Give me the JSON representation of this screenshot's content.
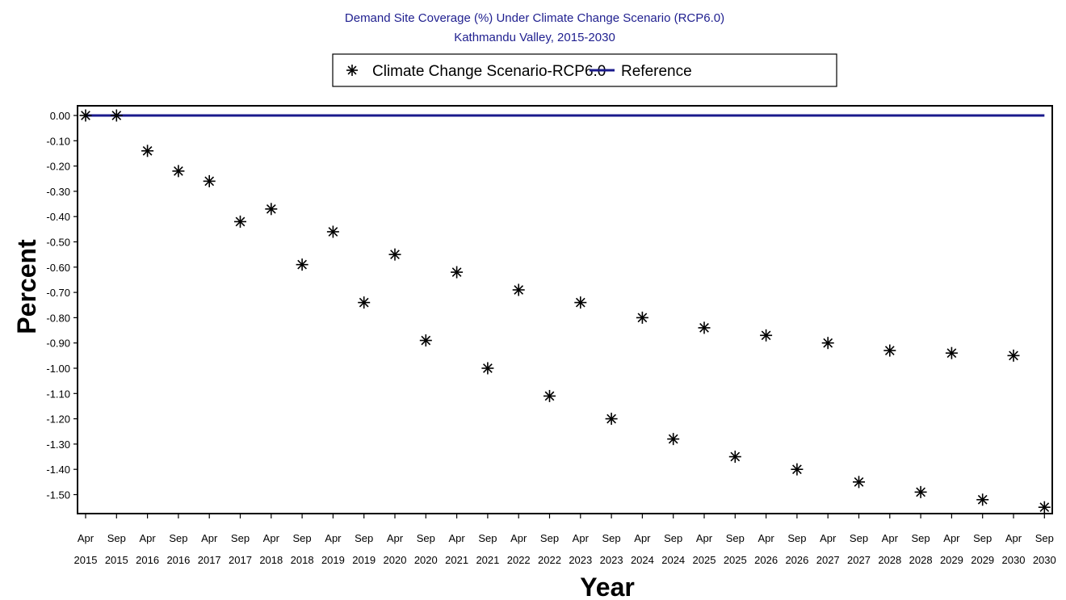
{
  "chart_data": {
    "type": "scatter",
    "title": "Demand Site Coverage (%) Under Climate Change Scenario (RCP6.0)",
    "subtitle": "Kathmandu Valley, 2015-2030",
    "xlabel": "Year",
    "ylabel": "Percent",
    "ylim": [
      -1.57,
      0.03
    ],
    "y_ticks": [
      0.0,
      -0.1,
      -0.2,
      -0.3,
      -0.4,
      -0.5,
      -0.6,
      -0.7,
      -0.8,
      -0.9,
      -1.0,
      -1.1,
      -1.2,
      -1.3,
      -1.4,
      -1.5
    ],
    "y_tick_labels": [
      "0.00",
      "-0.10",
      "-0.20",
      "-0.30",
      "-0.40",
      "-0.50",
      "-0.60",
      "-0.70",
      "-0.80",
      "-0.90",
      "-1.00",
      "-1.10",
      "-1.20",
      "-1.30",
      "-1.40",
      "-1.50"
    ],
    "categories": [
      {
        "month": "Apr",
        "year": "2015"
      },
      {
        "month": "Sep",
        "year": "2015"
      },
      {
        "month": "Apr",
        "year": "2016"
      },
      {
        "month": "Sep",
        "year": "2016"
      },
      {
        "month": "Apr",
        "year": "2017"
      },
      {
        "month": "Sep",
        "year": "2017"
      },
      {
        "month": "Apr",
        "year": "2018"
      },
      {
        "month": "Sep",
        "year": "2018"
      },
      {
        "month": "Apr",
        "year": "2019"
      },
      {
        "month": "Sep",
        "year": "2019"
      },
      {
        "month": "Apr",
        "year": "2020"
      },
      {
        "month": "Sep",
        "year": "2020"
      },
      {
        "month": "Apr",
        "year": "2021"
      },
      {
        "month": "Sep",
        "year": "2021"
      },
      {
        "month": "Apr",
        "year": "2022"
      },
      {
        "month": "Sep",
        "year": "2022"
      },
      {
        "month": "Apr",
        "year": "2023"
      },
      {
        "month": "Sep",
        "year": "2023"
      },
      {
        "month": "Apr",
        "year": "2024"
      },
      {
        "month": "Sep",
        "year": "2024"
      },
      {
        "month": "Apr",
        "year": "2025"
      },
      {
        "month": "Sep",
        "year": "2025"
      },
      {
        "month": "Apr",
        "year": "2026"
      },
      {
        "month": "Sep",
        "year": "2026"
      },
      {
        "month": "Apr",
        "year": "2027"
      },
      {
        "month": "Sep",
        "year": "2027"
      },
      {
        "month": "Apr",
        "year": "2028"
      },
      {
        "month": "Sep",
        "year": "2028"
      },
      {
        "month": "Apr",
        "year": "2029"
      },
      {
        "month": "Sep",
        "year": "2029"
      },
      {
        "month": "Apr",
        "year": "2030"
      },
      {
        "month": "Sep",
        "year": "2030"
      }
    ],
    "series": [
      {
        "name": "Climate Change Scenario-RCP6.0",
        "marker": "asterisk",
        "color": "#000000",
        "values": [
          0.0,
          0.0,
          -0.14,
          -0.22,
          -0.26,
          -0.42,
          -0.37,
          -0.59,
          -0.46,
          -0.74,
          -0.55,
          -0.89,
          -0.62,
          -1.0,
          -0.69,
          -1.11,
          -0.74,
          -1.2,
          -0.8,
          -1.28,
          -0.84,
          -1.35,
          -0.87,
          -1.4,
          -0.9,
          -1.45,
          -0.93,
          -1.49,
          -0.94,
          -1.52,
          -0.95,
          -1.55
        ]
      },
      {
        "name": "Reference",
        "marker": "line",
        "color": "#1a1a8c",
        "values": [
          0,
          0,
          0,
          0,
          0,
          0,
          0,
          0,
          0,
          0,
          0,
          0,
          0,
          0,
          0,
          0,
          0,
          0,
          0,
          0,
          0,
          0,
          0,
          0,
          0,
          0,
          0,
          0,
          0,
          0,
          0,
          0
        ]
      }
    ],
    "legend_position": "top-center",
    "grid": false
  }
}
